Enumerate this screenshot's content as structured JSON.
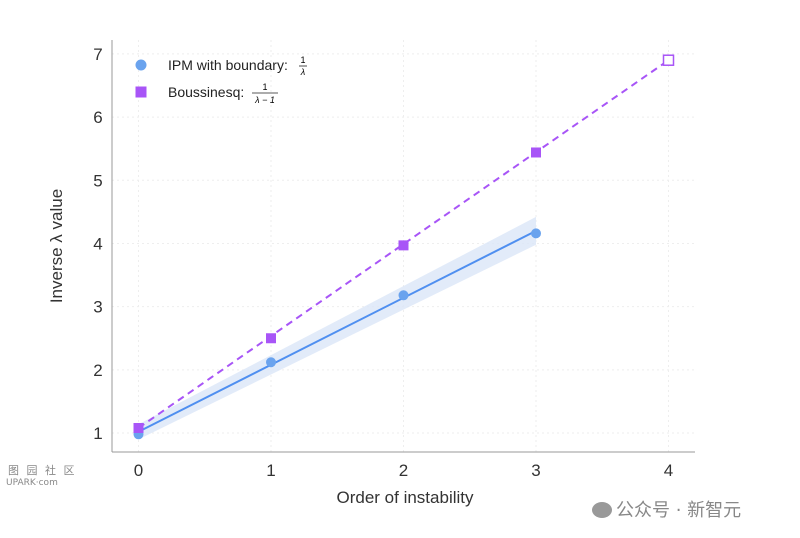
{
  "chart_data": {
    "type": "line",
    "title": "",
    "xlabel": "Order of instability",
    "ylabel": "Inverse λ value",
    "xlim": [
      -0.2,
      4.2
    ],
    "ylim": [
      0.7,
      7.22
    ],
    "xticks": [
      "0",
      "1",
      "2",
      "3",
      "4"
    ],
    "yticks": [
      "1",
      "2",
      "3",
      "4",
      "5",
      "6",
      "7"
    ],
    "grid": true,
    "legend_position": "top-left",
    "series": [
      {
        "name": "IPM with boundary: 1/λ",
        "label_text": "IPM with boundary:",
        "frac_num": "1",
        "frac_den": "λ",
        "marker": "circle",
        "color": "#6aa3ee",
        "x": [
          0,
          1,
          2,
          3
        ],
        "y": [
          0.98,
          2.12,
          3.18,
          4.16
        ],
        "fit": {
          "x": [
            0,
            3
          ],
          "y": [
            1.02,
            4.2
          ],
          "band": [
            0.12,
            0.22
          ],
          "color": "#4f8ff0"
        }
      },
      {
        "name": "Boussinesq: 1/(λ−1)",
        "label_text": "Boussinesq:",
        "frac_num": "1",
        "frac_den": "λ − 1",
        "marker": "square",
        "color": "#a855f7",
        "x": [
          0,
          1,
          2,
          3,
          4
        ],
        "y": [
          1.08,
          2.5,
          3.97,
          5.44,
          6.9
        ],
        "hollow_last": true,
        "fit": {
          "x": [
            0,
            4
          ],
          "y": [
            1.08,
            6.9
          ],
          "dashed": true
        }
      }
    ]
  },
  "watermarks": {
    "left_top": "图 园 社 区",
    "left_bottom": "UPARK·com",
    "right": "公众号 · 新智元"
  }
}
